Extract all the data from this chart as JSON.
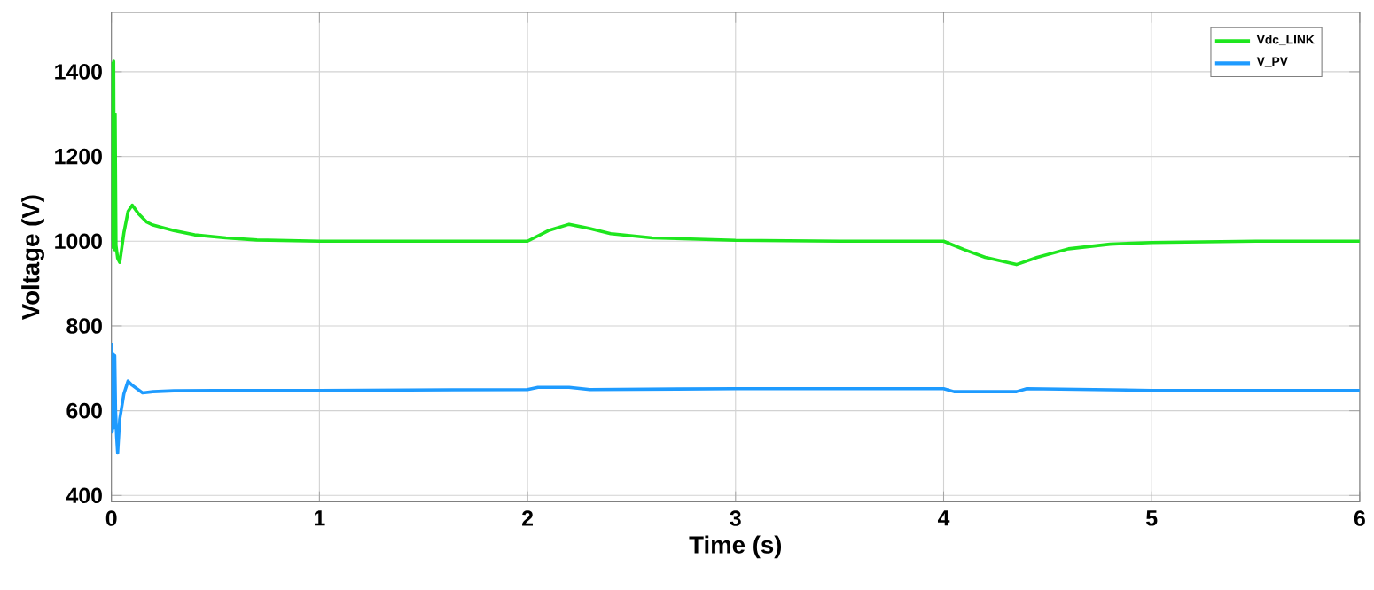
{
  "chart_data": {
    "type": "line",
    "xlabel": "Time (s)",
    "ylabel": "Voltage (V)",
    "xlim": [
      0,
      6
    ],
    "ylim": [
      385,
      1540
    ],
    "xticks": [
      0,
      1,
      2,
      3,
      4,
      5,
      6
    ],
    "yticks": [
      400,
      600,
      800,
      1000,
      1200,
      1400
    ],
    "grid": true,
    "legend": "top right",
    "line_style": "solid",
    "marker": "none",
    "series": [
      {
        "name": "Vdc_LINK",
        "color": "#1ee61e",
        "x": [
          0,
          0.004,
          0.008,
          0.011,
          0.014,
          0.018,
          0.022,
          0.03,
          0.04,
          0.06,
          0.08,
          0.1,
          0.13,
          0.17,
          0.2,
          0.3,
          0.4,
          0.55,
          0.7,
          1,
          1.5,
          2,
          2.1,
          2.2,
          2.3,
          2.4,
          2.6,
          3,
          3.5,
          4,
          4.1,
          4.2,
          4.35,
          4.45,
          4.6,
          4.8,
          5,
          5.5,
          6
        ],
        "values": [
          1000,
          1420,
          985,
          1425,
          980,
          1300,
          990,
          960,
          950,
          1020,
          1070,
          1085,
          1065,
          1045,
          1038,
          1025,
          1015,
          1008,
          1003,
          1000,
          1000,
          1000,
          1025,
          1040,
          1030,
          1018,
          1008,
          1002,
          1000,
          1000,
          980,
          962,
          945,
          962,
          982,
          993,
          997,
          1000,
          1000
        ]
      },
      {
        "name": "V_PV",
        "color": "#1e9bff",
        "x": [
          0,
          0.004,
          0.008,
          0.012,
          0.016,
          0.02,
          0.025,
          0.03,
          0.04,
          0.06,
          0.08,
          0.1,
          0.15,
          0.2,
          0.3,
          0.5,
          1,
          2,
          2.05,
          2.2,
          2.3,
          3,
          4,
          4.05,
          4.35,
          4.4,
          5,
          6
        ],
        "values": [
          760,
          550,
          735,
          560,
          730,
          600,
          540,
          500,
          580,
          640,
          670,
          660,
          642,
          645,
          647,
          648,
          648,
          650,
          655,
          655,
          650,
          652,
          652,
          645,
          645,
          652,
          648,
          648
        ]
      }
    ]
  }
}
